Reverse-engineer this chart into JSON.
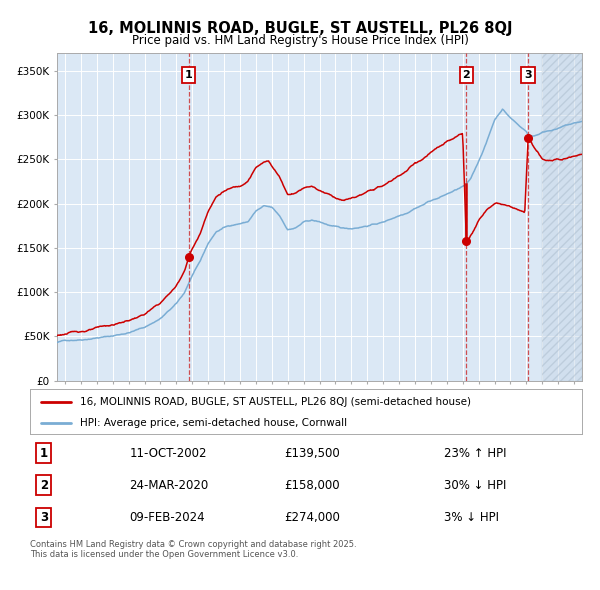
{
  "title": "16, MOLINNIS ROAD, BUGLE, ST AUSTELL, PL26 8QJ",
  "subtitle": "Price paid vs. HM Land Registry's House Price Index (HPI)",
  "line1_color": "#cc0000",
  "line2_color": "#7aadd4",
  "vline_color": "#cc3333",
  "marker_color": "#cc0000",
  "line1_label": "16, MOLINNIS ROAD, BUGLE, ST AUSTELL, PL26 8QJ (semi-detached house)",
  "line2_label": "HPI: Average price, semi-detached house, Cornwall",
  "bg_color": "#dbe8f5",
  "table_rows": [
    {
      "num": "1",
      "date": "11-OCT-2002",
      "price": "£139,500",
      "hpi": "23% ↑ HPI"
    },
    {
      "num": "2",
      "date": "24-MAR-2020",
      "price": "£158,000",
      "hpi": "30% ↓ HPI"
    },
    {
      "num": "3",
      "date": "09-FEB-2024",
      "price": "£274,000",
      "hpi": "3% ↓ HPI"
    }
  ],
  "footer": "Contains HM Land Registry data © Crown copyright and database right 2025.\nThis data is licensed under the Open Government Licence v3.0.",
  "ylim": [
    0,
    370000
  ],
  "xlim_start": 1994.5,
  "xlim_end": 2027.5,
  "yticks": [
    0,
    50000,
    100000,
    150000,
    200000,
    250000,
    300000,
    350000
  ],
  "ytick_labels": [
    "£0",
    "£50K",
    "£100K",
    "£150K",
    "£200K",
    "£250K",
    "£300K",
    "£350K"
  ],
  "xticks": [
    1995,
    1996,
    1997,
    1998,
    1999,
    2000,
    2001,
    2002,
    2003,
    2004,
    2005,
    2006,
    2007,
    2008,
    2009,
    2010,
    2011,
    2012,
    2013,
    2014,
    2015,
    2016,
    2017,
    2018,
    2019,
    2020,
    2021,
    2022,
    2023,
    2024,
    2025,
    2026,
    2027
  ],
  "hatch_start": 2025.0,
  "sale1_date": 2002.78,
  "sale1_price": 139500,
  "sale2_date": 2020.23,
  "sale2_price": 158000,
  "sale3_date": 2024.11,
  "sale3_price": 274000
}
